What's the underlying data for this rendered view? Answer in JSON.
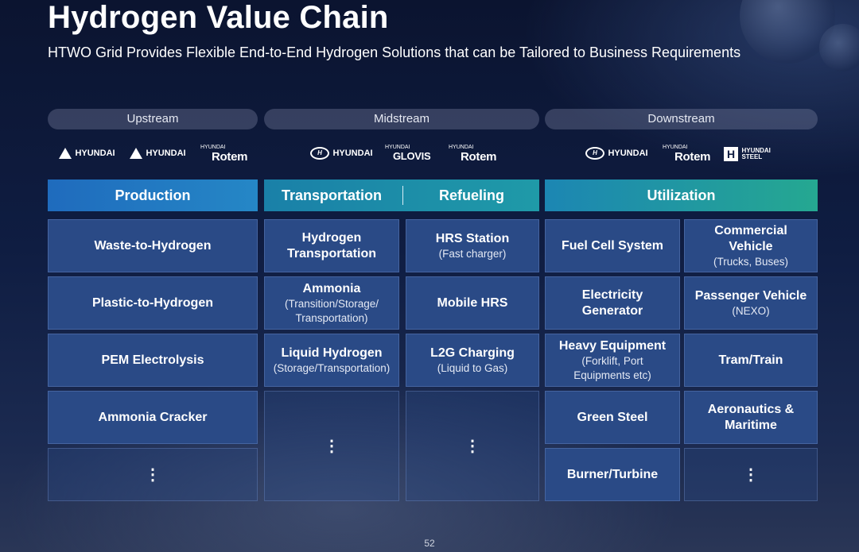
{
  "title": "Hydrogen Value Chain",
  "subtitle": "HTWO Grid Provides Flexible End-to-End Hydrogen Solutions that can be Tailored to Business Requirements",
  "stages": {
    "upstream": "Upstream",
    "midstream": "Midstream",
    "downstream": "Downstream"
  },
  "logos": {
    "upstream": {
      "a": "HYUNDAI",
      "b": "HYUNDAI",
      "c_small": "HYUNDAI",
      "c_big": "Rotem"
    },
    "midstream": {
      "a": "HYUNDAI",
      "b_small": "HYUNDAI",
      "b_big": "GLOVIS",
      "c_small": "HYUNDAI",
      "c_big": "Rotem"
    },
    "downstream": {
      "a": "HYUNDAI",
      "b_small": "HYUNDAI",
      "b_big": "Rotem",
      "c_top": "HYUNDAI",
      "c_bottom": "STEEL"
    }
  },
  "headers": {
    "production": "Production",
    "transportation": "Transportation",
    "refueling": "Refueling",
    "utilization": "Utilization"
  },
  "production": [
    {
      "main": "Waste-to-Hydrogen"
    },
    {
      "main": "Plastic-to-Hydrogen"
    },
    {
      "main": "PEM Electrolysis"
    },
    {
      "main": "Ammonia Cracker"
    },
    {
      "more": "⋮"
    }
  ],
  "transportation": [
    {
      "main": "Hydrogen Transportation"
    },
    {
      "main": "Ammonia",
      "sub": "(Transition/Storage/ Transportation)"
    },
    {
      "main": "Liquid Hydrogen",
      "sub": "(Storage/Transportation)"
    },
    {
      "more": "⋮"
    }
  ],
  "refueling": [
    {
      "main": "HRS Station",
      "sub": "(Fast charger)"
    },
    {
      "main": "Mobile HRS"
    },
    {
      "main": "L2G Charging",
      "sub": "(Liquid to Gas)"
    },
    {
      "more": "⋮"
    }
  ],
  "utilization_left": [
    {
      "main": "Fuel Cell System"
    },
    {
      "main": "Electricity Generator"
    },
    {
      "main": "Heavy Equipment",
      "sub": "(Forklift, Port Equipments etc)"
    },
    {
      "main": "Green Steel"
    },
    {
      "main": "Burner/Turbine"
    }
  ],
  "utilization_right": [
    {
      "main": "Commercial Vehicle",
      "sub": "(Trucks, Buses)"
    },
    {
      "main": "Passenger Vehicle",
      "sub": "(NEXO)"
    },
    {
      "main": "Tram/Train"
    },
    {
      "main": "Aeronautics & Maritime"
    },
    {
      "more": "⋮"
    }
  ],
  "page_number": "52",
  "colors": {
    "cell": "#2a4a86",
    "production_header": "#1f6bbd",
    "midstream_header": "#1a80a8",
    "utilization_header": "#25a891",
    "background": "#0f1d42"
  }
}
